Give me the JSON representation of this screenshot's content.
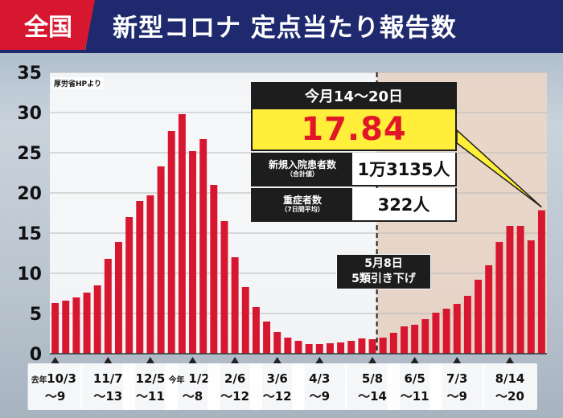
{
  "header": {
    "badge": "全国",
    "title": "新型コロナ 定点当たり報告数"
  },
  "source_note": "厚労省HPより",
  "panel": {
    "period": "今月14〜20日",
    "value": "17.84",
    "row1_label": "新規入院患者数",
    "row1_sub": "（合計値）",
    "row1_value": "1万3135人",
    "row2_label": "重症者数",
    "row2_sub": "（7日間平均）",
    "row2_value": "322人"
  },
  "marker": {
    "line1": "5月8日",
    "line2": "5類引き下げ"
  },
  "colors": {
    "bar": "#d7172f",
    "highlight_bg": "#ebd6c6",
    "plot_bg": "#ffffff",
    "panel_value_bg": "#ffef3a"
  },
  "chart_data": {
    "type": "bar",
    "ylim": [
      0,
      35
    ],
    "yticks": [
      0,
      5,
      10,
      15,
      20,
      25,
      30,
      35
    ],
    "grid": true,
    "marker_after_index": 31,
    "values": [
      6.3,
      6.6,
      7.0,
      7.6,
      8.5,
      11.8,
      13.9,
      17.0,
      19.0,
      19.7,
      23.3,
      27.7,
      29.8,
      25.2,
      26.7,
      21.0,
      16.5,
      12.0,
      8.3,
      5.8,
      4.0,
      2.7,
      2.0,
      1.6,
      1.2,
      1.2,
      1.3,
      1.4,
      1.6,
      1.9,
      1.8,
      2.0,
      2.6,
      3.4,
      3.6,
      4.3,
      5.1,
      5.6,
      6.2,
      7.2,
      9.2,
      11.0,
      13.9,
      15.9,
      15.9,
      14.1,
      17.84
    ],
    "x_labels": [
      {
        "index": 0,
        "prefix": "去年",
        "line1": "10/3",
        "line2": "〜9"
      },
      {
        "index": 5,
        "prefix": "",
        "line1": "11/7",
        "line2": "〜13"
      },
      {
        "index": 9,
        "prefix": "",
        "line1": "12/5",
        "line2": "〜11"
      },
      {
        "index": 13,
        "prefix": "今年",
        "line1": "1/2",
        "line2": "〜8"
      },
      {
        "index": 17,
        "prefix": "",
        "line1": "2/6",
        "line2": "〜12"
      },
      {
        "index": 21,
        "prefix": "",
        "line1": "3/6",
        "line2": "〜12"
      },
      {
        "index": 25,
        "prefix": "",
        "line1": "4/3",
        "line2": "〜9"
      },
      {
        "index": 30,
        "prefix": "",
        "line1": "5/8",
        "line2": "〜14"
      },
      {
        "index": 34,
        "prefix": "",
        "line1": "6/5",
        "line2": "〜11"
      },
      {
        "index": 38,
        "prefix": "",
        "line1": "7/3",
        "line2": "〜9"
      },
      {
        "index": 43,
        "prefix": "",
        "line1": "8/14",
        "line2": "〜20"
      }
    ]
  }
}
